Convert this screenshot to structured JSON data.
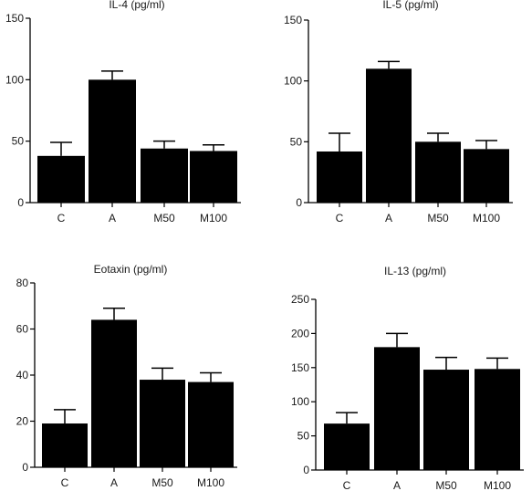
{
  "chart_data": [
    {
      "type": "bar",
      "title": "IL-4 (pg/ml)",
      "categories": [
        "C",
        "A",
        "M50",
        "M100"
      ],
      "values": [
        38,
        100,
        44,
        42
      ],
      "error": [
        11,
        7,
        6,
        5
      ],
      "ylim": [
        0,
        150
      ],
      "yticks": [
        "0",
        "50",
        "100",
        "150"
      ],
      "xlabel": "",
      "ylabel": "",
      "bar_color": "#000000"
    },
    {
      "type": "bar",
      "title": "IL-5 (pg/ml)",
      "categories": [
        "C",
        "A",
        "M50",
        "M100"
      ],
      "values": [
        42,
        110,
        50,
        44
      ],
      "error": [
        15,
        6,
        7,
        7
      ],
      "ylim": [
        0,
        150
      ],
      "yticks": [
        "0",
        "50",
        "100",
        "150"
      ],
      "xlabel": "",
      "ylabel": "",
      "bar_color": "#000000"
    },
    {
      "type": "bar",
      "title": "Eotaxin (pg/ml)",
      "categories": [
        "C",
        "A",
        "M50",
        "M100"
      ],
      "values": [
        19,
        64,
        38,
        37
      ],
      "error": [
        6,
        5,
        5,
        4
      ],
      "ylim": [
        0,
        80
      ],
      "yticks": [
        "0",
        "20",
        "40",
        "60",
        "80"
      ],
      "xlabel": "",
      "ylabel": "",
      "bar_color": "#000000"
    },
    {
      "type": "bar",
      "title": "IL-13 (pg/ml)",
      "categories": [
        "C",
        "A",
        "M50",
        "M100"
      ],
      "values": [
        68,
        180,
        147,
        148
      ],
      "error": [
        16,
        20,
        18,
        16
      ],
      "ylim": [
        0,
        250
      ],
      "yticks": [
        "0",
        "50",
        "100",
        "150",
        "200",
        "250"
      ],
      "xlabel": "",
      "ylabel": "",
      "bar_color": "#000000"
    }
  ]
}
